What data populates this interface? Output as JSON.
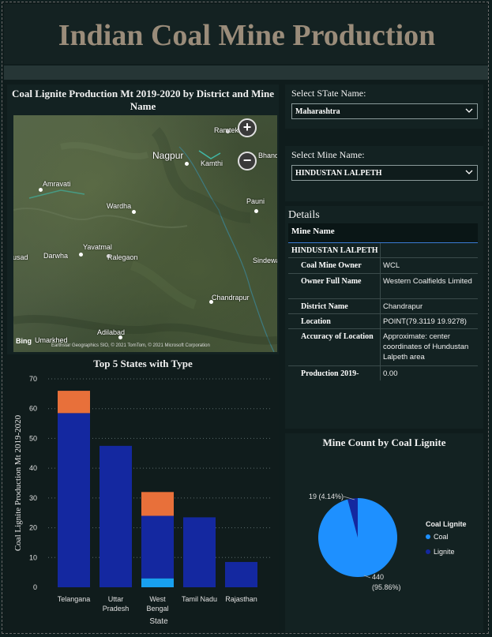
{
  "header": {
    "title": "Indian Coal Mine Production"
  },
  "map_panel": {
    "title": "Coal Lignite Production Mt 2019-2020 by District and Mine Name",
    "cities": [
      "Ramtek",
      "Nagpur",
      "Kamthi",
      "Bhandara",
      "Amravati",
      "Wardha",
      "Pauni",
      "Yavatmal",
      "Darwha",
      "Ralegaon",
      "Pusad",
      "Sindewahi",
      "Chandrapur",
      "Umarkhed",
      "Adilabad"
    ],
    "attribution": "Earthstar Geographics SIO, © 2021 TomTom, © 2021 Microsoft Corporation",
    "bing": "Bing",
    "zoom_in": "+",
    "zoom_out": "−"
  },
  "slicers": {
    "state_label": "Select STate Name:",
    "state_value": "Maharashtra",
    "mine_label": "Select Mine Name:",
    "mine_value": "HINDUSTAN LALPETH"
  },
  "details": {
    "title": "Details",
    "header": "Mine Name",
    "mine_name": "HINDUSTAN LALPETH",
    "rows": [
      {
        "label": "Coal Mine Owner",
        "value": "WCL"
      },
      {
        "label": "Owner Full Name",
        "value": "Western Coalfields Limited"
      },
      {
        "label": "District Name",
        "value": "Chandrapur"
      },
      {
        "label": "Location",
        "value": "POINT(79.3119 19.9278)"
      },
      {
        "label": "Accuracy of Location",
        "value": "Approximate: center coordinates of Hundustan Lalpeth area"
      },
      {
        "label": "Production 2019-",
        "value": "0.00"
      }
    ]
  },
  "bar_chart": {
    "title": "Top 5 States with Type",
    "ylabel": "Coal Lignite Production Mt 2019-2020",
    "xlabel": "State",
    "yticks": [
      "70",
      "60",
      "50",
      "40",
      "30",
      "20",
      "10",
      "0"
    ],
    "categories": [
      "Telangana",
      "Uttar Pradesh",
      "West Bengal",
      "Tamil Nadu",
      "Rajasthan"
    ],
    "category_lines": [
      [
        "Telangana"
      ],
      [
        "Uttar",
        "Pradesh"
      ],
      [
        "West",
        "Bengal"
      ],
      [
        "Tamil Nadu"
      ],
      [
        "Rajasthan"
      ]
    ],
    "colors": {
      "orange": "#e8703a",
      "blue": "#1428a0",
      "light": "#18a0f0"
    }
  },
  "pie_chart": {
    "title": "Mine Count by Coal Lignite",
    "legend_title": "Coal Lignite",
    "legend": [
      {
        "name": "Coal",
        "color": "#1e90ff"
      },
      {
        "name": "Lignite",
        "color": "#1428a0"
      }
    ],
    "label_small": "19 (4.14%)",
    "label_big_1": "440",
    "label_big_2": "(95.86%)"
  },
  "chart_data": [
    {
      "type": "bar",
      "title": "Top 5 States with Type",
      "xlabel": "State",
      "ylabel": "Coal Lignite Production Mt 2019-2020",
      "categories": [
        "Telangana",
        "Uttar Pradesh",
        "West Bengal",
        "Tamil Nadu",
        "Rajasthan"
      ],
      "stacked": true,
      "ylim": [
        0,
        70
      ],
      "series": [
        {
          "color": "#18a0f0",
          "values": [
            0,
            0,
            3,
            0,
            0
          ]
        },
        {
          "color": "#1428a0",
          "values": [
            58.5,
            47.5,
            21,
            23.5,
            8.5
          ]
        },
        {
          "color": "#e8703a",
          "values": [
            7.5,
            0,
            8,
            0,
            0
          ]
        }
      ]
    },
    {
      "type": "pie",
      "title": "Mine Count by Coal Lignite",
      "categories": [
        "Coal",
        "Lignite"
      ],
      "values": [
        440,
        19
      ],
      "percentages": [
        95.86,
        4.14
      ]
    }
  ]
}
